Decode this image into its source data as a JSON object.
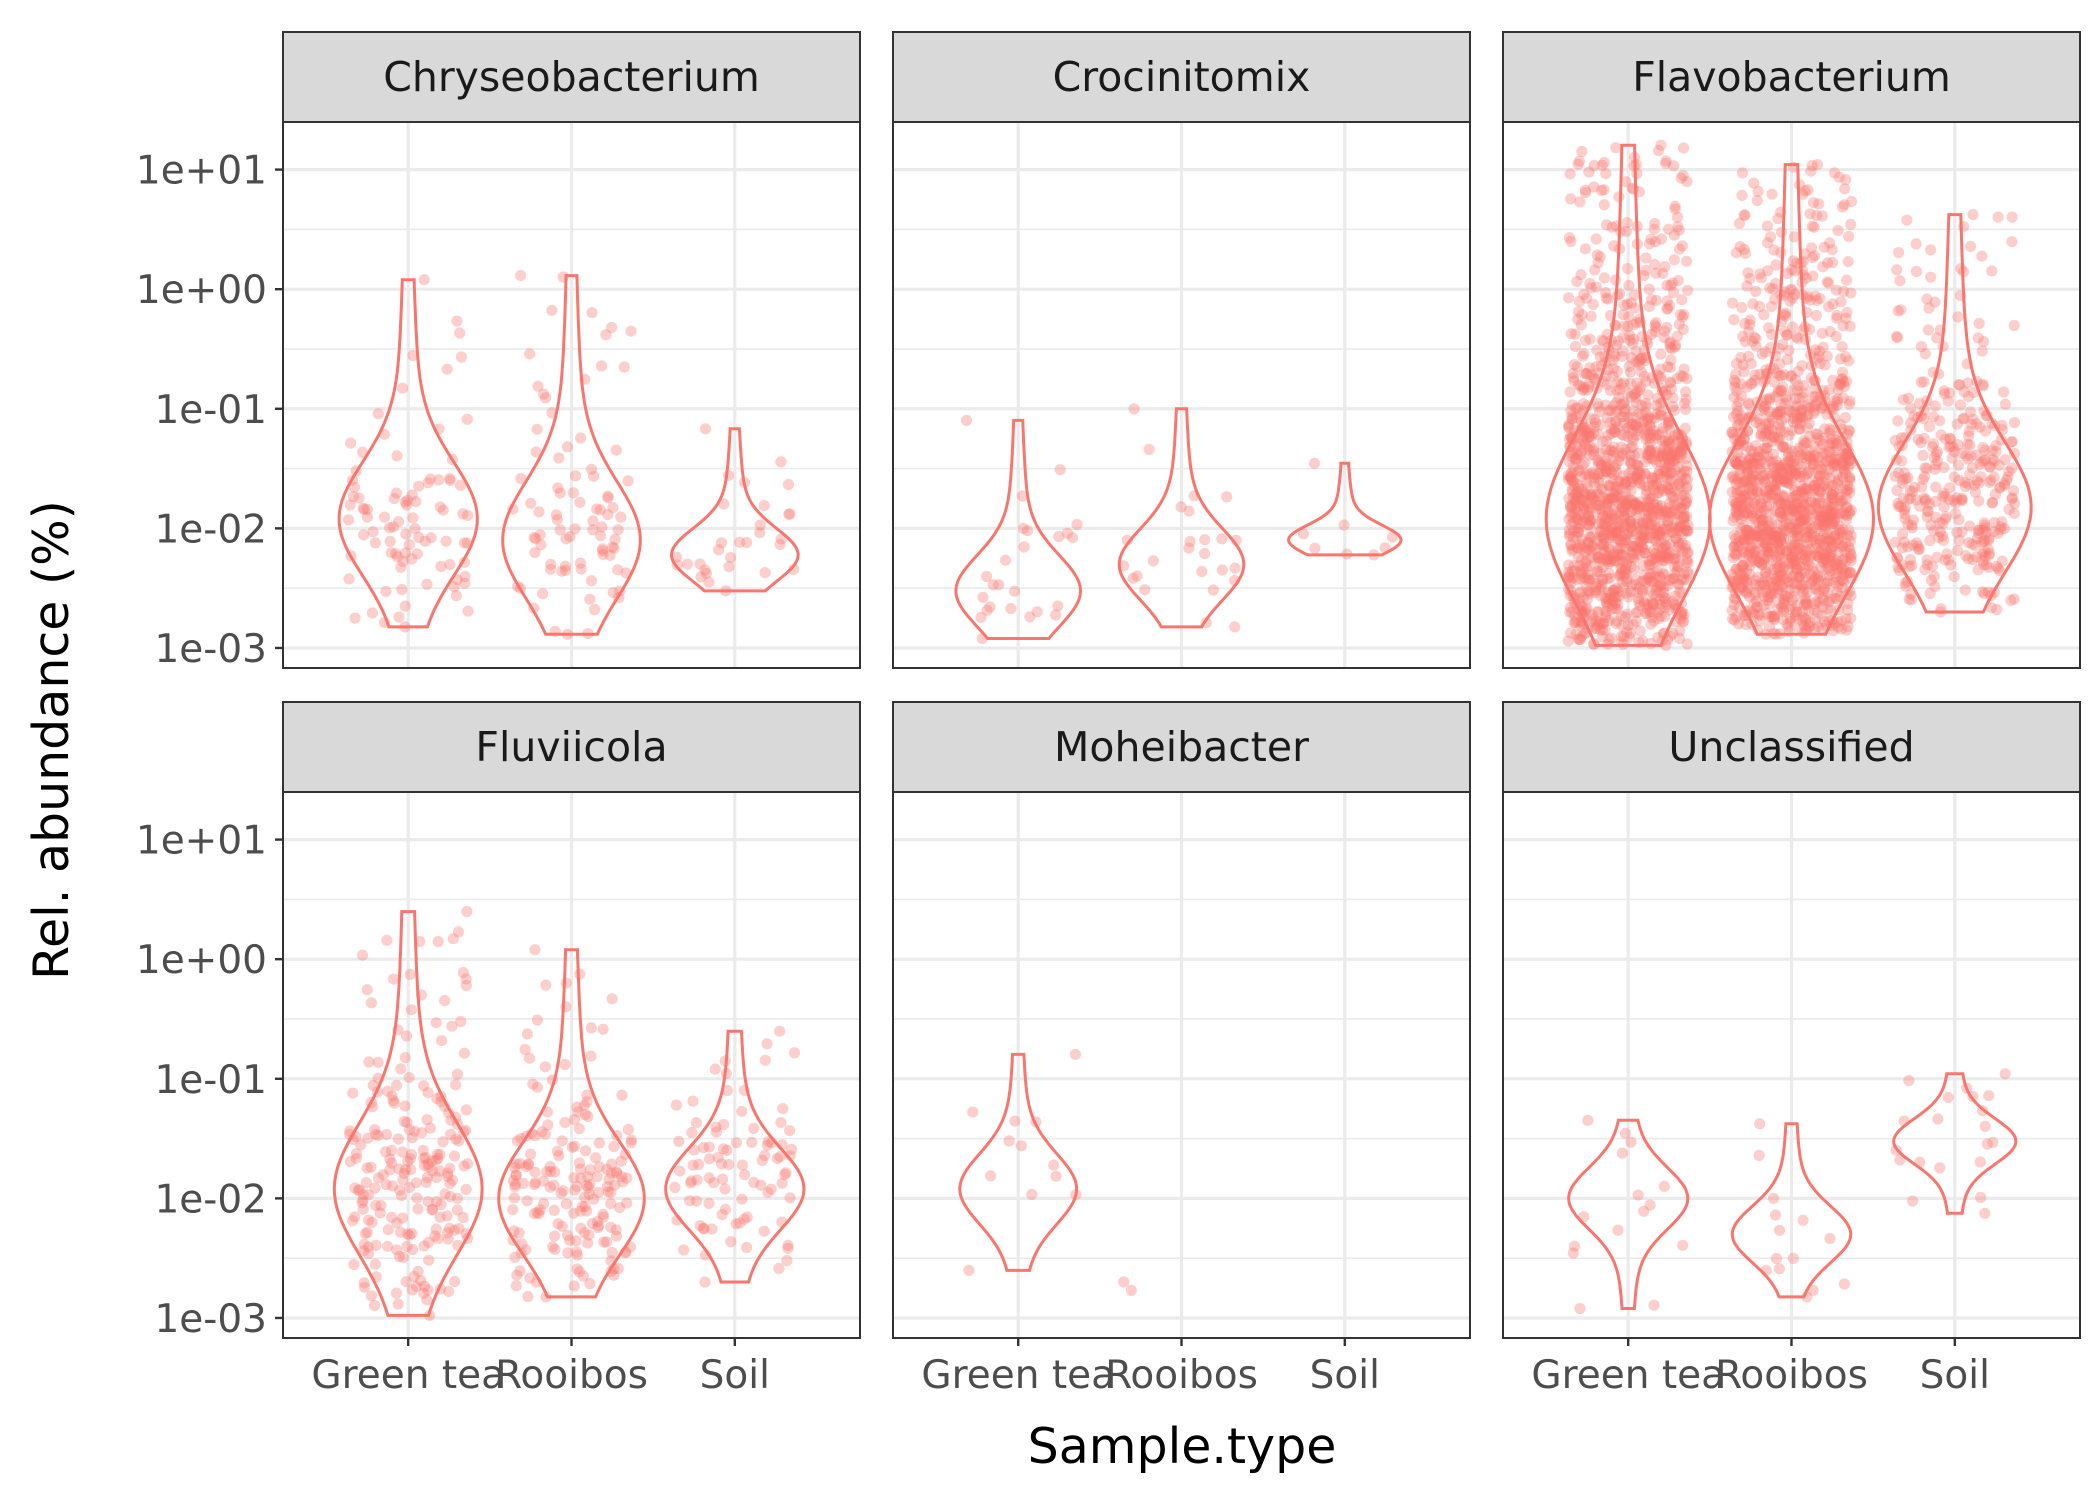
{
  "chart_data": {
    "type": "violin",
    "xlabel": "Sample.type",
    "ylabel": "Rel. abundance (%)",
    "y_scale": "log10",
    "y_ticks": [
      0.001,
      0.01,
      0.1,
      1,
      10
    ],
    "y_tick_labels": [
      "1e-03",
      "1e-02",
      "1e-01",
      "1e+00",
      "1e+01"
    ],
    "ylim": [
      0.00068,
      25
    ],
    "categories": [
      "Green tea",
      "Rooibos",
      "Soil"
    ],
    "grid": true,
    "legend": "none",
    "colors": {
      "series": "#F8766D",
      "strip": "#D9D9D9",
      "border": "#333333",
      "grid": "#EBEBEB"
    },
    "facets": [
      {
        "title": "Chryseobacterium",
        "groups": [
          {
            "category": "Green tea",
            "n": 90,
            "min": 0.0015,
            "max": 1.2,
            "mode": 0.012
          },
          {
            "category": "Rooibos",
            "n": 85,
            "min": 0.0013,
            "max": 1.3,
            "mode": 0.008
          },
          {
            "category": "Soil",
            "n": 30,
            "min": 0.003,
            "max": 0.068,
            "mode": 0.006
          }
        ]
      },
      {
        "title": "Crocinitomix",
        "groups": [
          {
            "category": "Green tea",
            "n": 25,
            "min": 0.0012,
            "max": 0.08,
            "mode": 0.003
          },
          {
            "category": "Rooibos",
            "n": 25,
            "min": 0.0015,
            "max": 0.1,
            "mode": 0.005
          },
          {
            "category": "Soil",
            "n": 8,
            "min": 0.006,
            "max": 0.035,
            "mode": 0.008
          }
        ]
      },
      {
        "title": "Flavobacterium",
        "groups": [
          {
            "category": "Green tea",
            "n": 1400,
            "min": 0.00105,
            "max": 16,
            "mode": 0.012
          },
          {
            "category": "Rooibos",
            "n": 1400,
            "min": 0.0013,
            "max": 11,
            "mode": 0.012
          },
          {
            "category": "Soil",
            "n": 350,
            "min": 0.002,
            "max": 4.2,
            "mode": 0.015
          }
        ]
      },
      {
        "title": "Fluviicola",
        "groups": [
          {
            "category": "Green tea",
            "n": 220,
            "min": 0.00105,
            "max": 2.5,
            "mode": 0.012
          },
          {
            "category": "Rooibos",
            "n": 180,
            "min": 0.0015,
            "max": 1.2,
            "mode": 0.01
          },
          {
            "category": "Soil",
            "n": 90,
            "min": 0.002,
            "max": 0.25,
            "mode": 0.012
          }
        ]
      },
      {
        "title": "Moheibacter",
        "groups": [
          {
            "category": "Green tea",
            "n": 12,
            "min": 0.0025,
            "max": 0.16,
            "mode": 0.012
          },
          {
            "category": "Rooibos",
            "n": 2,
            "min": 0.0017,
            "max": 0.002,
            "mode": 0.0018
          },
          {
            "category": "Soil",
            "n": 0,
            "min": null,
            "max": null,
            "mode": null
          }
        ]
      },
      {
        "title": "Unclassified",
        "groups": [
          {
            "category": "Green tea",
            "n": 15,
            "min": 0.0012,
            "max": 0.045,
            "mode": 0.01
          },
          {
            "category": "Rooibos",
            "n": 14,
            "min": 0.0015,
            "max": 0.042,
            "mode": 0.005
          },
          {
            "category": "Soil",
            "n": 20,
            "min": 0.0075,
            "max": 0.11,
            "mode": 0.03
          }
        ]
      }
    ]
  }
}
